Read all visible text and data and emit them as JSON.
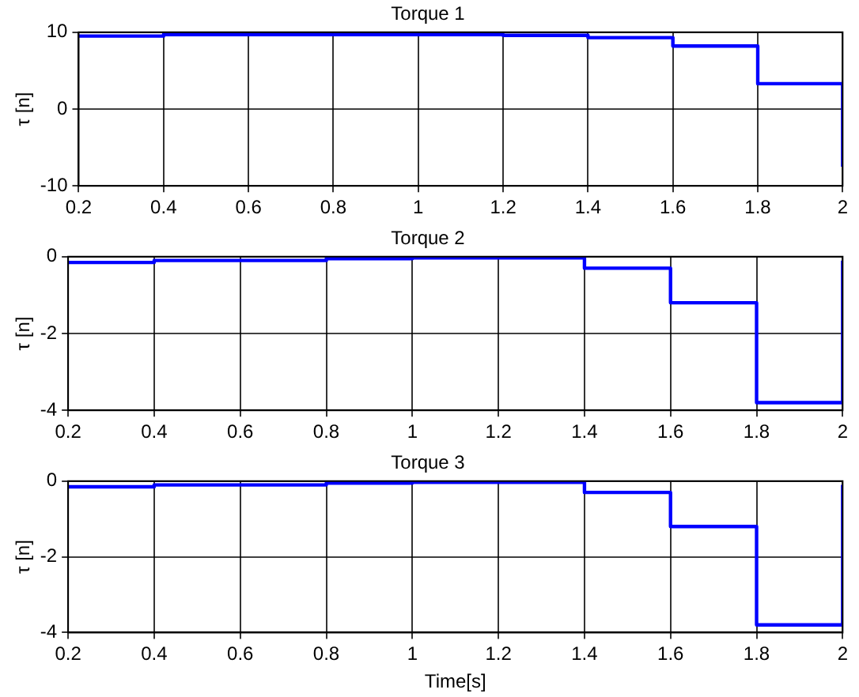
{
  "chart_data": [
    {
      "type": "step",
      "title": "Torque 1",
      "ylabel": "τ [n]",
      "x": [
        0.2,
        0.4,
        0.6,
        0.8,
        1.0,
        1.2,
        1.4,
        1.6,
        1.8,
        2.0
      ],
      "values": [
        9.5,
        9.7,
        9.7,
        9.7,
        9.7,
        9.6,
        9.3,
        8.2,
        3.3,
        -7.5
      ],
      "color": "#0000ff",
      "xlim": [
        0.2,
        2
      ],
      "xticks": [
        0.2,
        0.4,
        0.6,
        0.8,
        1,
        1.2,
        1.4,
        1.6,
        1.8,
        2
      ],
      "ylim": [
        -10,
        10
      ],
      "yticks": [
        -10,
        0,
        10
      ],
      "grid": true
    },
    {
      "type": "step",
      "title": "Torque 2",
      "ylabel": "τ [n]",
      "x": [
        0.2,
        0.4,
        0.6,
        0.8,
        1.0,
        1.2,
        1.4,
        1.6,
        1.8,
        2.0
      ],
      "values": [
        -0.15,
        -0.1,
        -0.1,
        -0.05,
        -0.03,
        -0.03,
        -0.3,
        -1.2,
        -3.8,
        -0.1
      ],
      "color": "#0000ff",
      "xlim": [
        0.2,
        2
      ],
      "xticks": [
        0.2,
        0.4,
        0.6,
        0.8,
        1,
        1.2,
        1.4,
        1.6,
        1.8,
        2
      ],
      "ylim": [
        -4,
        0
      ],
      "yticks": [
        -4,
        -2,
        0
      ],
      "grid": true
    },
    {
      "type": "step",
      "title": "Torque 3",
      "xlabel": "Time[s]",
      "ylabel": "τ [n]",
      "x": [
        0.2,
        0.4,
        0.6,
        0.8,
        1.0,
        1.2,
        1.4,
        1.6,
        1.8,
        2.0
      ],
      "values": [
        -0.15,
        -0.1,
        -0.1,
        -0.05,
        -0.03,
        -0.03,
        -0.3,
        -1.2,
        -3.8,
        -0.1
      ],
      "color": "#0000ff",
      "xlim": [
        0.2,
        2
      ],
      "xticks": [
        0.2,
        0.4,
        0.6,
        0.8,
        1,
        1.2,
        1.4,
        1.6,
        1.8,
        2
      ],
      "ylim": [
        -4,
        0
      ],
      "yticks": [
        -4,
        -2,
        0
      ],
      "grid": true
    }
  ]
}
